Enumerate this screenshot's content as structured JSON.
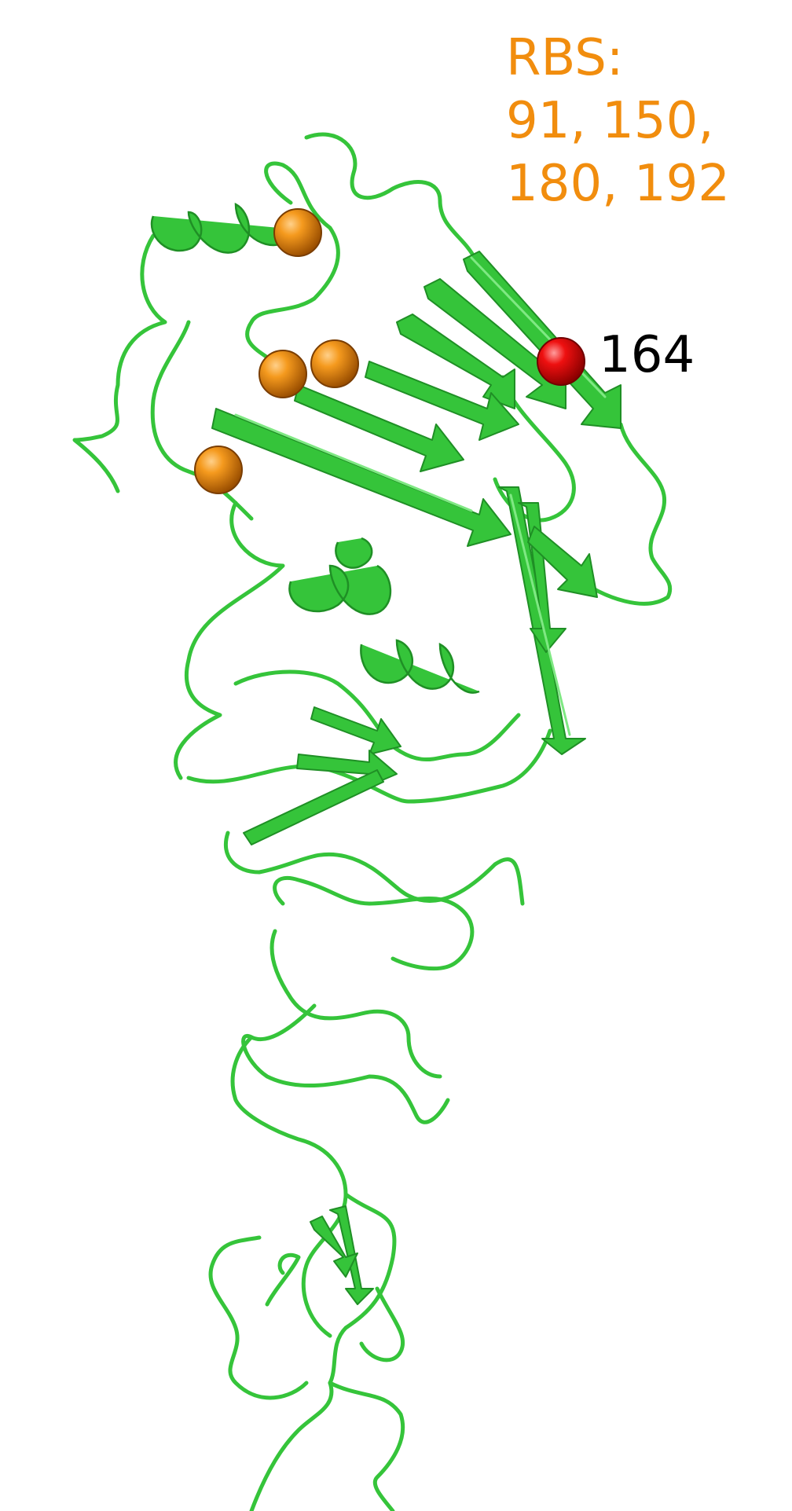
{
  "labels": {
    "rbs_title": "RBS:",
    "rbs_line1": "91, 150,",
    "rbs_line2": "180, 192",
    "site_label": "164"
  },
  "colors": {
    "ribbon": "#35c43a",
    "ribbon_dark": "#1f8f25",
    "ribbon_light": "#7fe883",
    "rbs_sphere": "#f08a0c",
    "site_sphere": "#e60000",
    "rbs_text": "#f18d0e",
    "site_text": "#000000"
  },
  "markers": {
    "rbs_count": 4,
    "site_count": 1
  }
}
